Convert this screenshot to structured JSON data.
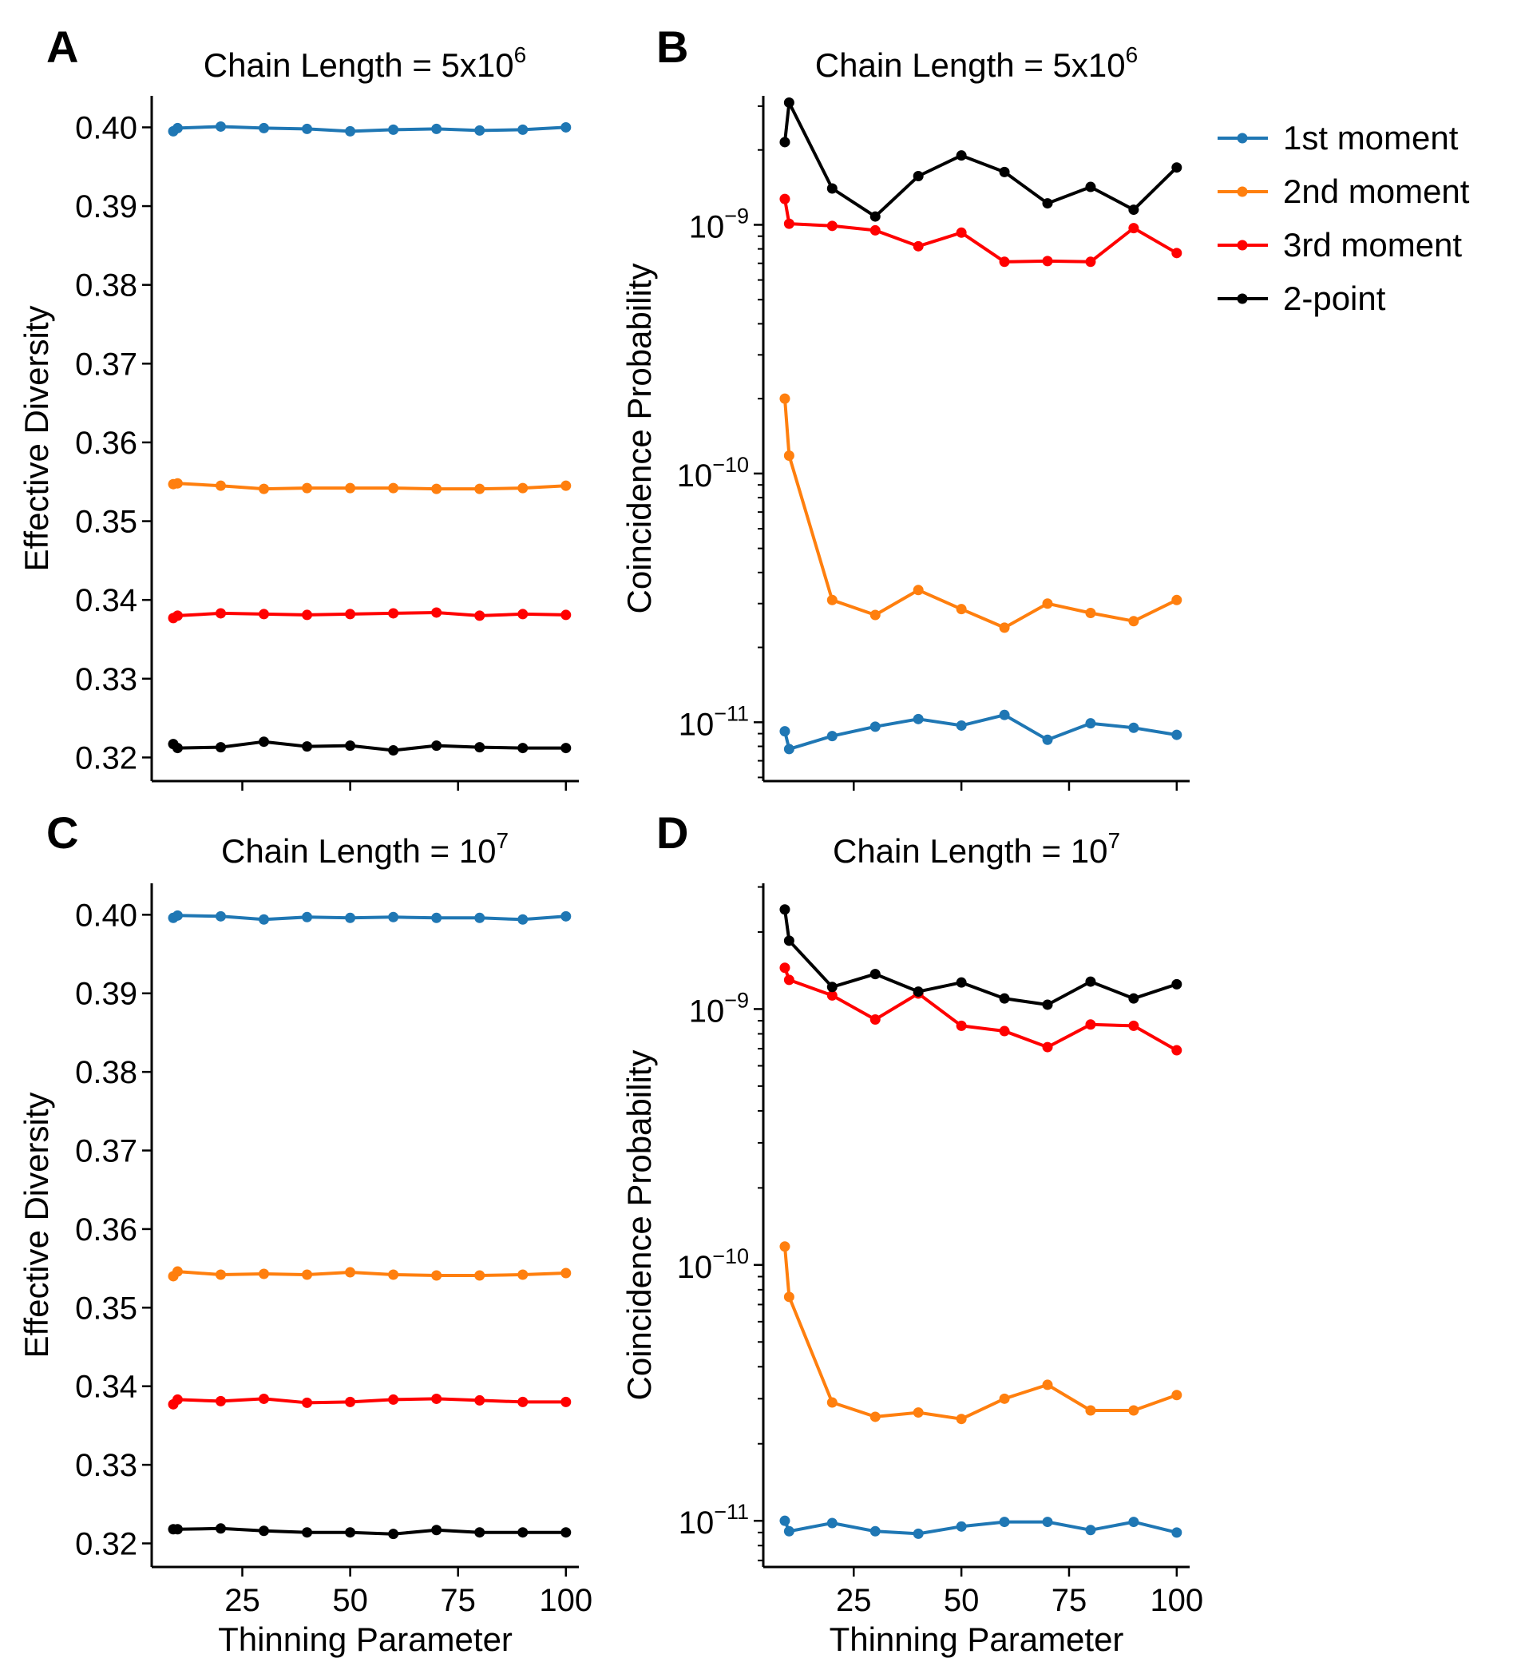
{
  "colors": {
    "1st moment": "#1f77b4",
    "2nd moment": "#ff7f0e",
    "3rd moment": "#ff0000",
    "2-point": "#000000"
  },
  "legend": {
    "placement": "right of panel B",
    "entries": [
      "1st moment",
      "2nd moment",
      "3rd moment",
      "2-point"
    ]
  },
  "chart_data": [
    {
      "panel": "A",
      "type": "line",
      "title": "Chain Length = 5x10",
      "title_exponent": "6",
      "xlabel": "",
      "ylabel": "Effective Diversity",
      "yscale": "linear",
      "ylim": [
        0.317,
        0.404
      ],
      "xlim": [
        4,
        103
      ],
      "yticks": [
        0.32,
        0.33,
        0.34,
        0.35,
        0.36,
        0.37,
        0.38,
        0.39,
        0.4
      ],
      "ytick_labels": [
        "0.32",
        "0.33",
        "0.34",
        "0.35",
        "0.36",
        "0.37",
        "0.38",
        "0.39",
        "0.40"
      ],
      "xticks": [
        25,
        50,
        75,
        100
      ],
      "xtick_labels": [],
      "grid": false,
      "x": [
        9,
        10,
        20,
        30,
        40,
        50,
        60,
        70,
        80,
        90,
        100
      ],
      "series": [
        {
          "name": "1st moment",
          "values": [
            0.3995,
            0.3999,
            0.4001,
            0.3999,
            0.3998,
            0.3995,
            0.3997,
            0.3998,
            0.3996,
            0.3997,
            0.4
          ]
        },
        {
          "name": "2nd moment",
          "values": [
            0.3547,
            0.3548,
            0.3545,
            0.3541,
            0.3542,
            0.3542,
            0.3542,
            0.3541,
            0.3541,
            0.3542,
            0.3545
          ]
        },
        {
          "name": "3rd moment",
          "values": [
            0.3377,
            0.338,
            0.3383,
            0.3382,
            0.3381,
            0.3382,
            0.3383,
            0.3384,
            0.338,
            0.3382,
            0.3381
          ]
        },
        {
          "name": "2-point",
          "values": [
            0.3217,
            0.3212,
            0.3213,
            0.322,
            0.3214,
            0.3215,
            0.3209,
            0.3215,
            0.3213,
            0.3212,
            0.3212
          ]
        }
      ]
    },
    {
      "panel": "B",
      "type": "line",
      "title": "Chain Length = 5x10",
      "title_exponent": "6",
      "xlabel": "",
      "ylabel": "Coincidence Probability",
      "yscale": "log",
      "ylim": [
        5.8e-12,
        3.3e-09
      ],
      "xlim": [
        4,
        103
      ],
      "yticks": [
        1e-11,
        1e-10,
        1e-09
      ],
      "ytick_labels": [
        {
          "base": "10",
          "exp": "−11"
        },
        {
          "base": "10",
          "exp": "−10"
        },
        {
          "base": "10",
          "exp": "−9"
        }
      ],
      "xticks": [
        25,
        50,
        75,
        100
      ],
      "xtick_labels": [],
      "grid": false,
      "x": [
        9,
        10,
        20,
        30,
        40,
        50,
        60,
        70,
        80,
        90,
        100
      ],
      "series": [
        {
          "name": "1st moment",
          "values": [
            9.2e-12,
            7.8e-12,
            8.8e-12,
            9.6e-12,
            1.03e-11,
            9.7e-12,
            1.07e-11,
            8.5e-12,
            9.9e-12,
            9.5e-12,
            8.9e-12
          ]
        },
        {
          "name": "2nd moment",
          "values": [
            2e-10,
            1.18e-10,
            3.1e-11,
            2.7e-11,
            3.4e-11,
            2.85e-11,
            2.4e-11,
            3e-11,
            2.75e-11,
            2.55e-11,
            3.1e-11
          ]
        },
        {
          "name": "3rd moment",
          "values": [
            1.27e-09,
            1.01e-09,
            9.9e-10,
            9.5e-10,
            8.2e-10,
            9.3e-10,
            7.1e-10,
            7.15e-10,
            7.1e-10,
            9.7e-10,
            7.7e-10
          ]
        },
        {
          "name": "2-point",
          "values": [
            2.15e-09,
            3.1e-09,
            1.4e-09,
            1.08e-09,
            1.57e-09,
            1.9e-09,
            1.63e-09,
            1.22e-09,
            1.42e-09,
            1.15e-09,
            1.7e-09
          ]
        }
      ]
    },
    {
      "panel": "C",
      "type": "line",
      "title": "Chain Length = 10",
      "title_exponent": "7",
      "xlabel": "Thinning Parameter",
      "ylabel": "Effective Diversity",
      "yscale": "linear",
      "ylim": [
        0.317,
        0.404
      ],
      "xlim": [
        4,
        103
      ],
      "yticks": [
        0.32,
        0.33,
        0.34,
        0.35,
        0.36,
        0.37,
        0.38,
        0.39,
        0.4
      ],
      "ytick_labels": [
        "0.32",
        "0.33",
        "0.34",
        "0.35",
        "0.36",
        "0.37",
        "0.38",
        "0.39",
        "0.40"
      ],
      "xticks": [
        25,
        50,
        75,
        100
      ],
      "xtick_labels": [
        "25",
        "50",
        "75",
        "100"
      ],
      "grid": false,
      "x": [
        9,
        10,
        20,
        30,
        40,
        50,
        60,
        70,
        80,
        90,
        100
      ],
      "series": [
        {
          "name": "1st moment",
          "values": [
            0.3996,
            0.3999,
            0.3998,
            0.3994,
            0.3997,
            0.3996,
            0.3997,
            0.3996,
            0.3996,
            0.3994,
            0.3998
          ]
        },
        {
          "name": "2nd moment",
          "values": [
            0.354,
            0.3546,
            0.3542,
            0.3543,
            0.3542,
            0.3545,
            0.3542,
            0.3541,
            0.3541,
            0.3542,
            0.3544
          ]
        },
        {
          "name": "3rd moment",
          "values": [
            0.3377,
            0.3383,
            0.3381,
            0.3384,
            0.3379,
            0.338,
            0.3383,
            0.3384,
            0.3382,
            0.338,
            0.338
          ]
        },
        {
          "name": "2-point",
          "values": [
            0.3218,
            0.3218,
            0.3219,
            0.3216,
            0.3214,
            0.3214,
            0.3212,
            0.3217,
            0.3214,
            0.3214,
            0.3214
          ]
        }
      ]
    },
    {
      "panel": "D",
      "type": "line",
      "title": "Chain Length = 10",
      "title_exponent": "7",
      "xlabel": "Thinning Parameter",
      "ylabel": "Coincidence Probability",
      "yscale": "log",
      "ylim": [
        6.6e-12,
        3.1e-09
      ],
      "xlim": [
        4,
        103
      ],
      "yticks": [
        1e-11,
        1e-10,
        1e-09
      ],
      "ytick_labels": [
        {
          "base": "10",
          "exp": "−11"
        },
        {
          "base": "10",
          "exp": "−10"
        },
        {
          "base": "10",
          "exp": "−9"
        }
      ],
      "xticks": [
        25,
        50,
        75,
        100
      ],
      "xtick_labels": [
        "25",
        "50",
        "75",
        "100"
      ],
      "grid": false,
      "x": [
        9,
        10,
        20,
        30,
        40,
        50,
        60,
        70,
        80,
        90,
        100
      ],
      "series": [
        {
          "name": "1st moment",
          "values": [
            1e-11,
            9.1e-12,
            9.8e-12,
            9.1e-12,
            8.9e-12,
            9.5e-12,
            9.9e-12,
            9.9e-12,
            9.2e-12,
            9.9e-12,
            9e-12
          ]
        },
        {
          "name": "2nd moment",
          "values": [
            1.18e-10,
            7.5e-11,
            2.9e-11,
            2.55e-11,
            2.65e-11,
            2.5e-11,
            3e-11,
            3.4e-11,
            2.7e-11,
            2.7e-11,
            3.1e-11
          ]
        },
        {
          "name": "3rd moment",
          "values": [
            1.45e-09,
            1.3e-09,
            1.13e-09,
            9.1e-10,
            1.15e-09,
            8.6e-10,
            8.2e-10,
            7.1e-10,
            8.7e-10,
            8.6e-10,
            6.9e-10
          ]
        },
        {
          "name": "2-point",
          "values": [
            2.45e-09,
            1.85e-09,
            1.22e-09,
            1.37e-09,
            1.17e-09,
            1.27e-09,
            1.1e-09,
            1.04e-09,
            1.28e-09,
            1.1e-09,
            1.25e-09
          ]
        }
      ]
    }
  ]
}
